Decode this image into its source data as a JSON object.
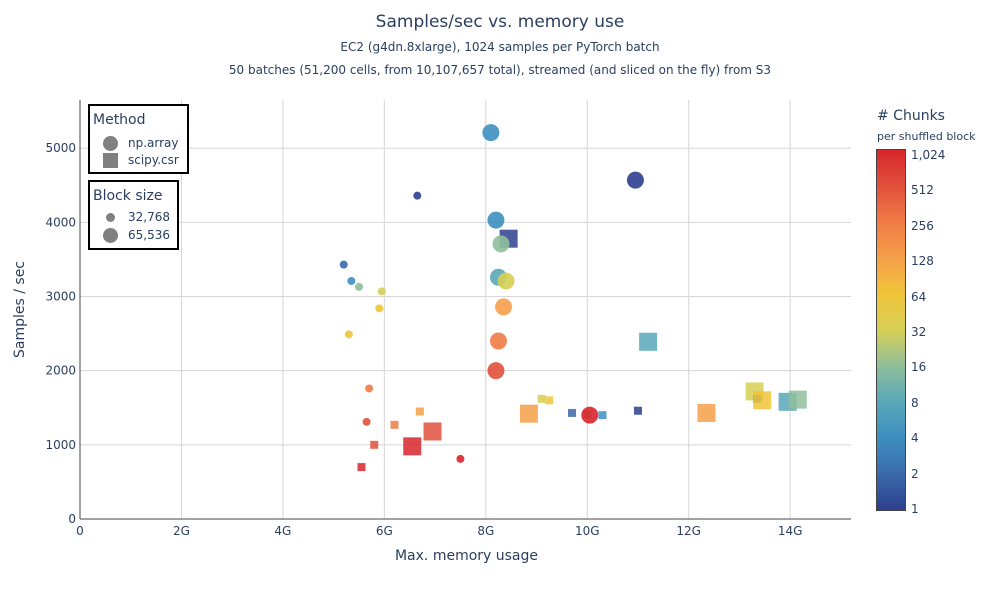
{
  "chart_data": {
    "type": "scatter",
    "title": "Samples/sec vs. memory use",
    "subtitle_lines": [
      "EC2 (g4dn.8xlarge), 1024 samples per PyTorch batch",
      "50 batches (51,200 cells, from 10,107,657 total), streamed (and sliced on the fly) from S3"
    ],
    "xlabel": "Max. memory usage",
    "ylabel": "Samples / sec",
    "xlim": [
      0,
      15.2
    ],
    "ylim": [
      0,
      5650
    ],
    "xticks": [
      {
        "value": 0,
        "label": "0"
      },
      {
        "value": 2,
        "label": "2G"
      },
      {
        "value": 4,
        "label": "4G"
      },
      {
        "value": 6,
        "label": "6G"
      },
      {
        "value": 8,
        "label": "8G"
      },
      {
        "value": 10,
        "label": "10G"
      },
      {
        "value": 12,
        "label": "12G"
      },
      {
        "value": 14,
        "label": "14G"
      }
    ],
    "yticks": [
      {
        "value": 0,
        "label": "0"
      },
      {
        "value": 1000,
        "label": "1000"
      },
      {
        "value": 2000,
        "label": "2000"
      },
      {
        "value": 3000,
        "label": "3000"
      },
      {
        "value": 4000,
        "label": "4000"
      },
      {
        "value": 5000,
        "label": "5000"
      }
    ],
    "grid": true,
    "legends": [
      {
        "title": "Method",
        "items": [
          {
            "label": "np.array",
            "symbol": "circle"
          },
          {
            "label": "scipy.csr",
            "symbol": "square"
          }
        ]
      },
      {
        "title": "Block size",
        "items": [
          {
            "label": "32,768",
            "symbol": "circle",
            "size": "small"
          },
          {
            "label": "65,536",
            "symbol": "circle",
            "size": "large"
          }
        ]
      }
    ],
    "colorbar": {
      "title": "# Chunks",
      "subtitle": "per shuffled block",
      "scale": "log2",
      "range": [
        1,
        1024
      ],
      "ticks": [
        {
          "value": 1,
          "label": "1"
        },
        {
          "value": 2,
          "label": "2"
        },
        {
          "value": 4,
          "label": "4"
        },
        {
          "value": 8,
          "label": "8"
        },
        {
          "value": 16,
          "label": "16"
        },
        {
          "value": 32,
          "label": "32"
        },
        {
          "value": 64,
          "label": "64"
        },
        {
          "value": 128,
          "label": "128"
        },
        {
          "value": 256,
          "label": "256"
        },
        {
          "value": 512,
          "label": "512"
        },
        {
          "value": 1024,
          "label": "1,024"
        }
      ],
      "colorscale": [
        "#313695",
        "#4575b4",
        "#74add1",
        "#abd9e9",
        "#e0f3f8",
        "#ffffbf",
        "#fee090",
        "#fdae61",
        "#f46d43",
        "#d73027",
        "#a50026"
      ],
      "display_colorscale": [
        "#2c3f8f",
        "#3a6aaa",
        "#3d8fc0",
        "#58a7b8",
        "#8fbf9b",
        "#d6cf55",
        "#f0c43a",
        "#f5a04a",
        "#ef7b45",
        "#e2503c",
        "#d7262b"
      ]
    },
    "points": [
      {
        "x": 8.1,
        "y": 5210,
        "method": "np.array",
        "block_size": 65536,
        "chunks": 4
      },
      {
        "x": 10.95,
        "y": 4570,
        "method": "np.array",
        "block_size": 65536,
        "chunks": 1
      },
      {
        "x": 6.65,
        "y": 4360,
        "method": "np.array",
        "block_size": 32768,
        "chunks": 1
      },
      {
        "x": 8.2,
        "y": 4030,
        "method": "np.array",
        "block_size": 65536,
        "chunks": 4
      },
      {
        "x": 8.45,
        "y": 3780,
        "method": "scipy.csr",
        "block_size": 65536,
        "chunks": 1
      },
      {
        "x": 8.3,
        "y": 3710,
        "method": "np.array",
        "block_size": 65536,
        "chunks": 16
      },
      {
        "x": 5.2,
        "y": 3430,
        "method": "np.array",
        "block_size": 32768,
        "chunks": 2
      },
      {
        "x": 5.35,
        "y": 3210,
        "method": "np.array",
        "block_size": 32768,
        "chunks": 4
      },
      {
        "x": 5.5,
        "y": 3130,
        "method": "np.array",
        "block_size": 32768,
        "chunks": 16
      },
      {
        "x": 8.25,
        "y": 3260,
        "method": "np.array",
        "block_size": 65536,
        "chunks": 8
      },
      {
        "x": 8.4,
        "y": 3210,
        "method": "np.array",
        "block_size": 65536,
        "chunks": 32
      },
      {
        "x": 5.95,
        "y": 3070,
        "method": "np.array",
        "block_size": 32768,
        "chunks": 32
      },
      {
        "x": 8.35,
        "y": 2860,
        "method": "np.array",
        "block_size": 65536,
        "chunks": 128
      },
      {
        "x": 5.9,
        "y": 2840,
        "method": "np.array",
        "block_size": 32768,
        "chunks": 64
      },
      {
        "x": 5.3,
        "y": 2490,
        "method": "np.array",
        "block_size": 32768,
        "chunks": 64
      },
      {
        "x": 11.2,
        "y": 2390,
        "method": "scipy.csr",
        "block_size": 65536,
        "chunks": 8
      },
      {
        "x": 8.25,
        "y": 2400,
        "method": "np.array",
        "block_size": 65536,
        "chunks": 256
      },
      {
        "x": 8.2,
        "y": 2000,
        "method": "np.array",
        "block_size": 65536,
        "chunks": 512
      },
      {
        "x": 5.7,
        "y": 1760,
        "method": "np.array",
        "block_size": 32768,
        "chunks": 256
      },
      {
        "x": 13.3,
        "y": 1720,
        "method": "scipy.csr",
        "block_size": 65536,
        "chunks": 32
      },
      {
        "x": 13.35,
        "y": 1620,
        "method": "scipy.csr",
        "block_size": 32768,
        "chunks": 2
      },
      {
        "x": 13.45,
        "y": 1600,
        "method": "scipy.csr",
        "block_size": 65536,
        "chunks": 64
      },
      {
        "x": 13.95,
        "y": 1580,
        "method": "scipy.csr",
        "block_size": 65536,
        "chunks": 8
      },
      {
        "x": 14.15,
        "y": 1610,
        "method": "scipy.csr",
        "block_size": 65536,
        "chunks": 16
      },
      {
        "x": 9.1,
        "y": 1620,
        "method": "scipy.csr",
        "block_size": 32768,
        "chunks": 32
      },
      {
        "x": 9.25,
        "y": 1600,
        "method": "scipy.csr",
        "block_size": 32768,
        "chunks": 64
      },
      {
        "x": 6.7,
        "y": 1450,
        "method": "scipy.csr",
        "block_size": 32768,
        "chunks": 128
      },
      {
        "x": 8.85,
        "y": 1420,
        "method": "scipy.csr",
        "block_size": 65536,
        "chunks": 128
      },
      {
        "x": 9.7,
        "y": 1430,
        "method": "scipy.csr",
        "block_size": 32768,
        "chunks": 2
      },
      {
        "x": 10.0,
        "y": 1410,
        "method": "scipy.csr",
        "block_size": 32768,
        "chunks": 16
      },
      {
        "x": 10.05,
        "y": 1400,
        "method": "np.array",
        "block_size": 65536,
        "chunks": 1024
      },
      {
        "x": 10.3,
        "y": 1400,
        "method": "scipy.csr",
        "block_size": 32768,
        "chunks": 4
      },
      {
        "x": 11.0,
        "y": 1460,
        "method": "scipy.csr",
        "block_size": 32768,
        "chunks": 1
      },
      {
        "x": 12.35,
        "y": 1430,
        "method": "scipy.csr",
        "block_size": 65536,
        "chunks": 128
      },
      {
        "x": 5.65,
        "y": 1310,
        "method": "np.array",
        "block_size": 32768,
        "chunks": 512
      },
      {
        "x": 6.2,
        "y": 1270,
        "method": "scipy.csr",
        "block_size": 32768,
        "chunks": 256
      },
      {
        "x": 6.95,
        "y": 1180,
        "method": "scipy.csr",
        "block_size": 65536,
        "chunks": 512
      },
      {
        "x": 5.8,
        "y": 1000,
        "method": "scipy.csr",
        "block_size": 32768,
        "chunks": 512
      },
      {
        "x": 6.55,
        "y": 980,
        "method": "scipy.csr",
        "block_size": 65536,
        "chunks": 1024
      },
      {
        "x": 7.5,
        "y": 810,
        "method": "np.array",
        "block_size": 32768,
        "chunks": 1024
      },
      {
        "x": 5.55,
        "y": 700,
        "method": "scipy.csr",
        "block_size": 32768,
        "chunks": 1024
      }
    ]
  }
}
